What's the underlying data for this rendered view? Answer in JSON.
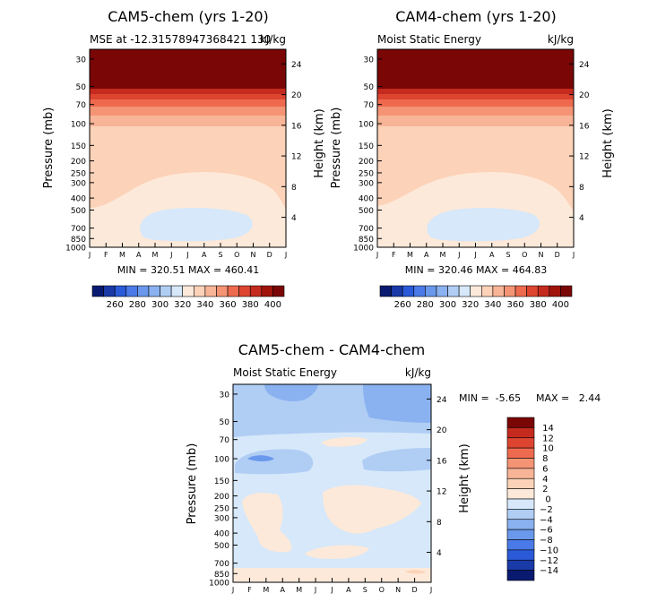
{
  "chart_data": [
    {
      "type": "contour",
      "title": "CAM5-chem (yrs 1-20)",
      "subtitle_left": "MSE at -12.31578947368421 130",
      "subtitle_right": "kJ/kg",
      "xlabel": "",
      "ylabel": "Pressure (mb)",
      "ylabel_right": "Height (km)",
      "x_ticks": [
        "J",
        "F",
        "M",
        "A",
        "M",
        "J",
        "J",
        "A",
        "S",
        "O",
        "N",
        "D",
        "J"
      ],
      "y_ticks": [
        30,
        50,
        70,
        100,
        150,
        200,
        250,
        300,
        400,
        500,
        700,
        850,
        1000
      ],
      "y_ticks_right": [
        4,
        8,
        12,
        16,
        20,
        24
      ],
      "ylim": [
        1000,
        25
      ],
      "y_scale": "log",
      "stats": "MIN = 320.51 MAX = 460.41",
      "colorbar": {
        "orientation": "horizontal",
        "labels": [
          260,
          280,
          300,
          320,
          340,
          360,
          380,
          400
        ],
        "colors": [
          "#0a1a70",
          "#1a3aa8",
          "#2a5ad8",
          "#4a7ae8",
          "#6a98ec",
          "#8ab2f0",
          "#b0cdf4",
          "#d6e8fa",
          "#fde9d9",
          "#fcd2b8",
          "#f8b496",
          "#f49474",
          "#ee6a4e",
          "#dd4530",
          "#c52a1e",
          "#a0140c",
          "#7a0606"
        ]
      },
      "contours": {
        "levels": [
          280,
          290,
          300,
          310,
          320,
          330,
          340,
          350,
          360,
          370,
          380,
          390,
          400,
          420,
          440,
          460
        ],
        "layers": [
          {
            "level": 400,
            "region": "p < 50 mb",
            "color": "#7a0606"
          },
          {
            "level": 380,
            "region": "50-70 mb band",
            "color": "#c52a1e"
          },
          {
            "level": 360,
            "region": "70-100 mb band",
            "color": "#f49474"
          },
          {
            "level": 340,
            "region": "100-500 mb",
            "color": "#fcd2b8"
          },
          {
            "level": 330,
            "region": "500-800 mb",
            "color": "#fde9d9"
          },
          {
            "level": 320,
            "region": "Apr-Nov 500-850 mb",
            "color": "#d6e8fa"
          }
        ]
      }
    },
    {
      "type": "contour",
      "title": "CAM4-chem (yrs 1-20)",
      "subtitle_left": "Moist Static Energy",
      "subtitle_right": "kJ/kg",
      "xlabel": "",
      "ylabel": "Pressure (mb)",
      "ylabel_right": "Height (km)",
      "x_ticks": [
        "J",
        "F",
        "M",
        "A",
        "M",
        "J",
        "J",
        "A",
        "S",
        "O",
        "N",
        "D",
        "J"
      ],
      "y_ticks": [
        30,
        50,
        70,
        100,
        150,
        200,
        250,
        300,
        400,
        500,
        700,
        850,
        1000
      ],
      "y_ticks_right": [
        4,
        8,
        12,
        16,
        20,
        24
      ],
      "ylim": [
        1000,
        25
      ],
      "y_scale": "log",
      "stats": "MIN = 320.46 MAX = 464.83",
      "colorbar": {
        "orientation": "horizontal",
        "labels": [
          260,
          280,
          300,
          320,
          340,
          360,
          380,
          400
        ],
        "colors": [
          "#0a1a70",
          "#1a3aa8",
          "#2a5ad8",
          "#4a7ae8",
          "#6a98ec",
          "#8ab2f0",
          "#b0cdf4",
          "#d6e8fa",
          "#fde9d9",
          "#fcd2b8",
          "#f8b496",
          "#f49474",
          "#ee6a4e",
          "#dd4530",
          "#c52a1e",
          "#a0140c",
          "#7a0606"
        ]
      }
    },
    {
      "type": "contour",
      "title": "CAM5-chem - CAM4-chem",
      "subtitle_left": "Moist Static Energy",
      "subtitle_right": "kJ/kg",
      "xlabel": "",
      "ylabel": "Pressure (mb)",
      "ylabel_right": "Height (km)",
      "x_ticks": [
        "J",
        "F",
        "M",
        "A",
        "M",
        "J",
        "J",
        "A",
        "S",
        "O",
        "N",
        "D",
        "J"
      ],
      "y_ticks": [
        30,
        50,
        70,
        100,
        150,
        200,
        250,
        300,
        400,
        500,
        700,
        850,
        1000
      ],
      "y_ticks_right": [
        4,
        8,
        12,
        16,
        20,
        24
      ],
      "ylim": [
        1000,
        25
      ],
      "y_scale": "log",
      "stats_min": "MIN =  -5.65",
      "stats_max": "MAX =   2.44",
      "colorbar": {
        "orientation": "vertical",
        "labels": [
          14,
          12,
          10,
          8,
          6,
          4,
          2,
          0,
          -2,
          -4,
          -6,
          -8,
          -10,
          -12,
          -14
        ],
        "colors": [
          "#7a0606",
          "#c52a1e",
          "#dd4530",
          "#ee6a4e",
          "#f49474",
          "#f8b496",
          "#fcd2b8",
          "#fde9d9",
          "#d6e8fa",
          "#b0cdf4",
          "#8ab2f0",
          "#6a98ec",
          "#4a7ae8",
          "#2a5ad8",
          "#1a3aa8",
          "#0a1a70"
        ]
      }
    }
  ],
  "colors": {
    "bg": "#ffffff",
    "axis": "#000000"
  }
}
